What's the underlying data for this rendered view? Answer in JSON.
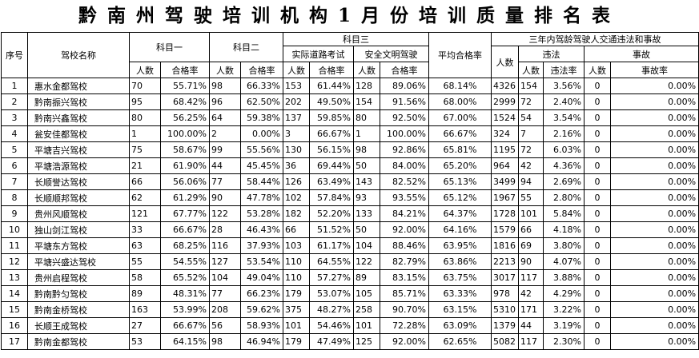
{
  "title": "黔南州驾驶培训机构1月份培训质量排名表",
  "headers": {
    "seq": "序号",
    "school": "驾校名称",
    "subject1": "科目一",
    "subject2": "科目二",
    "subject3": "科目三",
    "road_test": "实际道路考试",
    "civil_driving": "安全文明驾驶",
    "avg_pass_rate": "平均合格率",
    "three_year": "三年内驾龄驾驶人交通违法和事故",
    "violation": "违法",
    "accident": "事故",
    "persons": "人数",
    "pass_rate": "合格率",
    "violation_rate": "违法率",
    "accident_rate": "事故率"
  },
  "rows": [
    [
      "1",
      "惠水金都驾校",
      "70",
      "55.71%",
      "98",
      "66.33%",
      "153",
      "61.44%",
      "128",
      "89.06%",
      "68.14%",
      "4326",
      "154",
      "3.56%",
      "0",
      "0.00%"
    ],
    [
      "2",
      "黔南振兴驾校",
      "95",
      "68.42%",
      "96",
      "62.50%",
      "202",
      "49.50%",
      "154",
      "91.56%",
      "68.00%",
      "2999",
      "72",
      "2.40%",
      "0",
      "0.00%"
    ],
    [
      "3",
      "黔南兴鑫驾校",
      "80",
      "56.25%",
      "64",
      "59.38%",
      "137",
      "59.85%",
      "80",
      "92.50%",
      "67.00%",
      "1524",
      "54",
      "3.54%",
      "0",
      "0.00%"
    ],
    [
      "4",
      "瓮安佳都驾校",
      "1",
      "100.00%",
      "2",
      "0.00%",
      "3",
      "66.67%",
      "1",
      "100.00%",
      "66.67%",
      "324",
      "7",
      "2.16%",
      "0",
      "0.00%"
    ],
    [
      "5",
      "平塘吉兴驾校",
      "75",
      "58.67%",
      "99",
      "55.56%",
      "130",
      "56.15%",
      "98",
      "92.86%",
      "65.81%",
      "1195",
      "72",
      "6.03%",
      "0",
      "0.00%"
    ],
    [
      "6",
      "平塘浩源驾校",
      "21",
      "61.90%",
      "44",
      "45.45%",
      "36",
      "69.44%",
      "50",
      "84.00%",
      "65.20%",
      "964",
      "42",
      "4.36%",
      "0",
      "0.00%"
    ],
    [
      "7",
      "长顺誉达驾校",
      "66",
      "56.06%",
      "77",
      "58.44%",
      "126",
      "63.49%",
      "143",
      "82.52%",
      "65.13%",
      "3499",
      "94",
      "2.69%",
      "0",
      "0.00%"
    ],
    [
      "8",
      "长顺顺邦驾校",
      "62",
      "61.29%",
      "90",
      "47.78%",
      "102",
      "57.84%",
      "93",
      "93.55%",
      "65.12%",
      "1967",
      "55",
      "2.80%",
      "0",
      "0.00%"
    ],
    [
      "9",
      "贵州风顺驾校",
      "121",
      "67.77%",
      "122",
      "53.28%",
      "182",
      "52.20%",
      "133",
      "84.21%",
      "64.37%",
      "1728",
      "101",
      "5.84%",
      "0",
      "0.00%"
    ],
    [
      "10",
      "独山剑江驾校",
      "33",
      "66.67%",
      "28",
      "46.43%",
      "66",
      "51.52%",
      "50",
      "92.00%",
      "64.16%",
      "1579",
      "66",
      "4.18%",
      "0",
      "0.00%"
    ],
    [
      "11",
      "平塘东方驾校",
      "63",
      "68.25%",
      "116",
      "37.93%",
      "103",
      "61.17%",
      "104",
      "88.46%",
      "63.95%",
      "1816",
      "69",
      "3.80%",
      "0",
      "0.00%"
    ],
    [
      "12",
      "平塘兴盛达驾校",
      "55",
      "54.55%",
      "127",
      "53.54%",
      "110",
      "64.55%",
      "122",
      "82.79%",
      "63.86%",
      "2213",
      "90",
      "4.07%",
      "0",
      "0.00%"
    ],
    [
      "13",
      "贵州启程驾校",
      "58",
      "65.52%",
      "104",
      "49.04%",
      "110",
      "57.27%",
      "89",
      "83.15%",
      "63.75%",
      "3017",
      "117",
      "3.88%",
      "0",
      "0.00%"
    ],
    [
      "14",
      "黔南黔匀驾校",
      "89",
      "48.31%",
      "77",
      "66.23%",
      "179",
      "53.07%",
      "105",
      "85.71%",
      "63.33%",
      "978",
      "42",
      "4.29%",
      "0",
      "0.00%"
    ],
    [
      "15",
      "黔南金桥驾校",
      "163",
      "53.99%",
      "208",
      "59.62%",
      "375",
      "48.27%",
      "258",
      "90.70%",
      "63.15%",
      "5310",
      "171",
      "3.22%",
      "0",
      "0.00%"
    ],
    [
      "16",
      "长顺王成驾校",
      "27",
      "66.67%",
      "56",
      "58.93%",
      "101",
      "54.46%",
      "101",
      "72.28%",
      "63.09%",
      "1379",
      "44",
      "3.19%",
      "0",
      "0.00%"
    ],
    [
      "17",
      "黔南金都驾校",
      "53",
      "64.15%",
      "98",
      "46.94%",
      "179",
      "47.49%",
      "125",
      "92.00%",
      "62.65%",
      "5082",
      "117",
      "2.30%",
      "0",
      "0.00%"
    ]
  ]
}
